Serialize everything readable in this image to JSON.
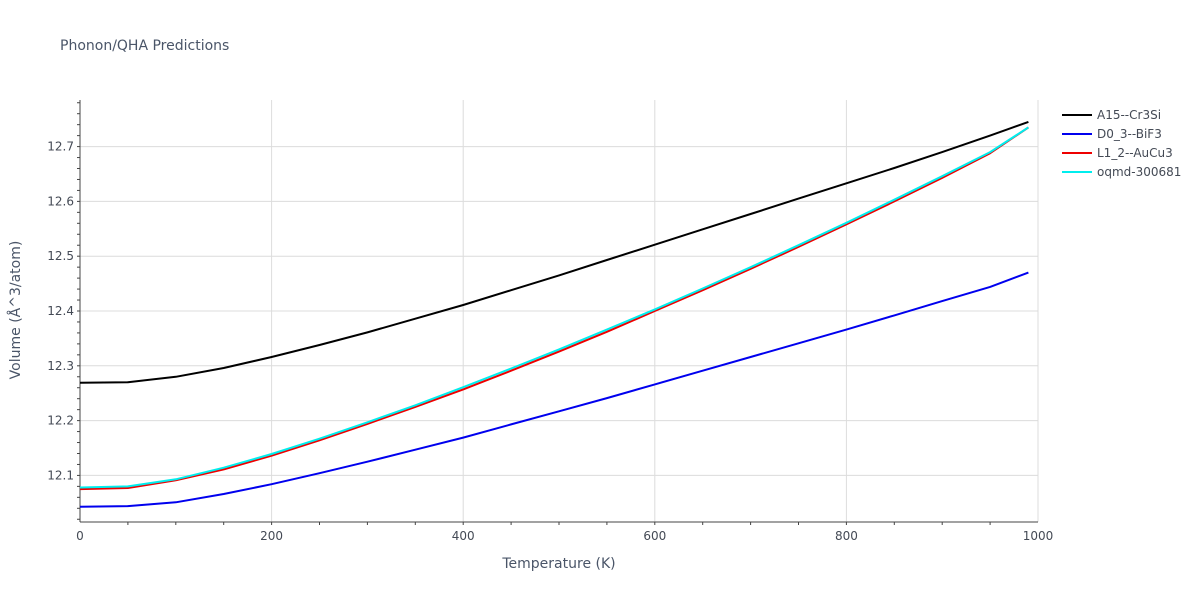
{
  "chart_data": {
    "type": "line",
    "title": "Phonon/QHA Predictions",
    "xlabel": "Temperature (K)",
    "ylabel": "Volume (Å^3/atom)",
    "xlim": [
      0,
      1000
    ],
    "ylim": [
      12.015,
      12.785
    ],
    "xticks": [
      0,
      200,
      400,
      600,
      800,
      1000
    ],
    "yticks": [
      12.1,
      12.2,
      12.3,
      12.4,
      12.5,
      12.6,
      12.7
    ],
    "grid": true,
    "legend_position": "top-right",
    "series": [
      {
        "name": "A15--Cr3Si",
        "color": "#000000",
        "x": [
          0,
          50,
          100,
          150,
          200,
          250,
          300,
          350,
          400,
          450,
          500,
          550,
          600,
          650,
          700,
          750,
          800,
          850,
          900,
          950,
          990
        ],
        "y": [
          12.269,
          12.27,
          12.28,
          12.296,
          12.316,
          12.338,
          12.361,
          12.386,
          12.411,
          12.438,
          12.465,
          12.493,
          12.521,
          12.549,
          12.577,
          12.605,
          12.633,
          12.661,
          12.69,
          12.72,
          12.745
        ]
      },
      {
        "name": "D0_3--BiF3",
        "color": "#0000ee",
        "x": [
          0,
          50,
          100,
          150,
          200,
          250,
          300,
          350,
          400,
          450,
          500,
          550,
          600,
          650,
          700,
          750,
          800,
          850,
          900,
          950,
          990
        ],
        "y": [
          12.043,
          12.044,
          12.051,
          12.066,
          12.084,
          12.104,
          12.125,
          12.147,
          12.169,
          12.193,
          12.217,
          12.241,
          12.266,
          12.291,
          12.316,
          12.341,
          12.366,
          12.392,
          12.418,
          12.444,
          12.47
        ]
      },
      {
        "name": "L1_2--AuCu3",
        "color": "#ee0000",
        "x": [
          0,
          50,
          100,
          150,
          200,
          250,
          300,
          350,
          400,
          450,
          500,
          550,
          600,
          650,
          700,
          750,
          800,
          850,
          900,
          950,
          990
        ],
        "y": [
          12.075,
          12.077,
          12.091,
          12.111,
          12.136,
          12.164,
          12.194,
          12.225,
          12.257,
          12.291,
          12.326,
          12.362,
          12.4,
          12.438,
          12.477,
          12.517,
          12.558,
          12.6,
          12.643,
          12.688,
          12.735
        ]
      },
      {
        "name": "oqmd-300681",
        "color": "#00eeee",
        "x": [
          0,
          50,
          100,
          150,
          200,
          250,
          300,
          350,
          400,
          450,
          500,
          550,
          600,
          650,
          700,
          750,
          800,
          850,
          900,
          950,
          990
        ],
        "y": [
          12.078,
          12.08,
          12.093,
          12.114,
          12.139,
          12.167,
          12.197,
          12.228,
          12.261,
          12.295,
          12.33,
          12.366,
          12.403,
          12.441,
          12.48,
          12.52,
          12.561,
          12.603,
          12.646,
          12.69,
          12.735
        ]
      }
    ]
  }
}
